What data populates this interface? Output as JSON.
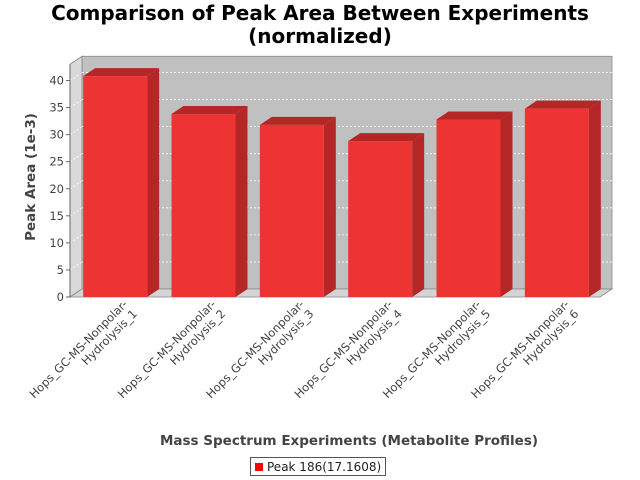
{
  "chart_data": {
    "type": "bar",
    "title_line1": "Comparison of Peak Area Between Experiments",
    "title_line2": "(normalized)",
    "xlabel": "Mass Spectrum Experiments (Metabolite Profiles)",
    "ylabel": "Peak Area (1e-3)",
    "ylim": [
      0,
      43
    ],
    "yticks": [
      0,
      5,
      10,
      15,
      20,
      25,
      30,
      35,
      40
    ],
    "ytick_labels": [
      "0",
      "5",
      "10",
      "15",
      "20",
      "25",
      "30",
      "35",
      "40"
    ],
    "categories": [
      [
        "Hops_GC-MS-Nonpolar-",
        "Hydrolysis_1"
      ],
      [
        "Hops_GC-MS-Nonpolar-",
        "Hydrolysis_2"
      ],
      [
        "Hops_GC-MS-Nonpolar-",
        "Hydrolysis_3"
      ],
      [
        "Hops_GC-MS-Nonpolar-",
        "Hydrolysis_4"
      ],
      [
        "Hops_GC-MS-Nonpolar-",
        "Hydrolysis_5"
      ],
      [
        "Hops_GC-MS-Nonpolar-",
        "Hydrolysis_6"
      ]
    ],
    "series": [
      {
        "name": "Peak 186(17.1608)",
        "values": [
          40.8,
          33.8,
          31.8,
          28.8,
          32.8,
          34.8
        ]
      }
    ],
    "grid": true,
    "legend_position": "bottom",
    "colors": {
      "bar_front": "#ee3333",
      "bar_top": "#b52727",
      "bar_side": "#b52727",
      "plot_back": "#c0c0c0",
      "plot_left_wall": "#d9d9d9",
      "plot_floor": "#d4d4d4",
      "legend_swatch": "#ff0000"
    }
  }
}
